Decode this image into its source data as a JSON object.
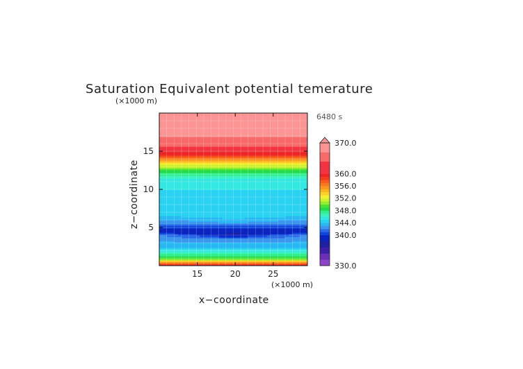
{
  "chart_data": {
    "type": "heatmap",
    "title": "Saturation Equivalent potential temerature",
    "time_label": "6480 s",
    "xlabel": "x−coordinate",
    "ylabel": "z−coordinate",
    "x_units": "(×1000 m)",
    "y_units": "(×1000 m)",
    "xlim": [
      10,
      29.5
    ],
    "ylim": [
      0,
      20
    ],
    "x_ticks": [
      15,
      20,
      25
    ],
    "x_tick_labels": [
      "15",
      "20",
      "25"
    ],
    "y_ticks": [
      5,
      10,
      15
    ],
    "y_tick_labels": [
      "5",
      "10",
      "15"
    ],
    "colorbar": {
      "min": 330,
      "max": 370,
      "labels": [
        "370.0",
        "360.0",
        "356.0",
        "352.0",
        "348.0",
        "344.0",
        "340.0",
        "330.0"
      ],
      "label_values": [
        370,
        360,
        356,
        352,
        348,
        344,
        340,
        330
      ],
      "extend": "max",
      "levels": [
        {
          "from": 330,
          "to": 332,
          "color": "#8e44c6"
        },
        {
          "from": 332,
          "to": 334,
          "color": "#6a30b8"
        },
        {
          "from": 334,
          "to": 336,
          "color": "#3c1ea8"
        },
        {
          "from": 336,
          "to": 338,
          "color": "#1e1ea0"
        },
        {
          "from": 338,
          "to": 340,
          "color": "#0a24c0"
        },
        {
          "from": 340,
          "to": 341,
          "color": "#0e46dc"
        },
        {
          "from": 341,
          "to": 342,
          "color": "#2a6ae8"
        },
        {
          "from": 342,
          "to": 343,
          "color": "#3c96ee"
        },
        {
          "from": 343,
          "to": 344,
          "color": "#28b8f4"
        },
        {
          "from": 344,
          "to": 345,
          "color": "#2ad2f2"
        },
        {
          "from": 345,
          "to": 346,
          "color": "#34e8e2"
        },
        {
          "from": 346,
          "to": 347,
          "color": "#3ef2c0"
        },
        {
          "from": 347,
          "to": 348,
          "color": "#32ee8e"
        },
        {
          "from": 348,
          "to": 349,
          "color": "#22dc4c"
        },
        {
          "from": 349,
          "to": 350,
          "color": "#4ce434"
        },
        {
          "from": 350,
          "to": 351,
          "color": "#96ee2e"
        },
        {
          "from": 351,
          "to": 352,
          "color": "#ccf22e"
        },
        {
          "from": 352,
          "to": 353,
          "color": "#f4f030"
        },
        {
          "from": 353,
          "to": 354,
          "color": "#fcd22a"
        },
        {
          "from": 354,
          "to": 355,
          "color": "#fcb422"
        },
        {
          "from": 355,
          "to": 356,
          "color": "#fc961e"
        },
        {
          "from": 356,
          "to": 357,
          "color": "#fc781e"
        },
        {
          "from": 357,
          "to": 358,
          "color": "#f85a1e"
        },
        {
          "from": 358,
          "to": 359,
          "color": "#f23c20"
        },
        {
          "from": 359,
          "to": 360,
          "color": "#ec2424"
        },
        {
          "from": 360,
          "to": 364,
          "color": "#f23440"
        },
        {
          "from": 364,
          "to": 367,
          "color": "#f86a6a"
        },
        {
          "from": 367,
          "to": 370,
          "color": "#fc9494"
        }
      ]
    },
    "profile": [
      {
        "z": 0.0,
        "theta": 360
      },
      {
        "z": 0.4,
        "theta": 356
      },
      {
        "z": 0.8,
        "theta": 351
      },
      {
        "z": 1.3,
        "theta": 348
      },
      {
        "z": 1.8,
        "theta": 346
      },
      {
        "z": 2.4,
        "theta": 344
      },
      {
        "z": 3.2,
        "theta": 343
      },
      {
        "z": 4.0,
        "theta": 342
      },
      {
        "z": 4.5,
        "theta": 339
      },
      {
        "z": 5.0,
        "theta": 340
      },
      {
        "z": 5.5,
        "theta": 342
      },
      {
        "z": 6.5,
        "theta": 344
      },
      {
        "z": 8.0,
        "theta": 344.5
      },
      {
        "z": 10.0,
        "theta": 345
      },
      {
        "z": 11.5,
        "theta": 346
      },
      {
        "z": 12.5,
        "theta": 349
      },
      {
        "z": 13.5,
        "theta": 353
      },
      {
        "z": 14.3,
        "theta": 358
      },
      {
        "z": 15.3,
        "theta": 361
      },
      {
        "z": 16.0,
        "theta": 366
      },
      {
        "z": 20.0,
        "theta": 370
      }
    ]
  }
}
